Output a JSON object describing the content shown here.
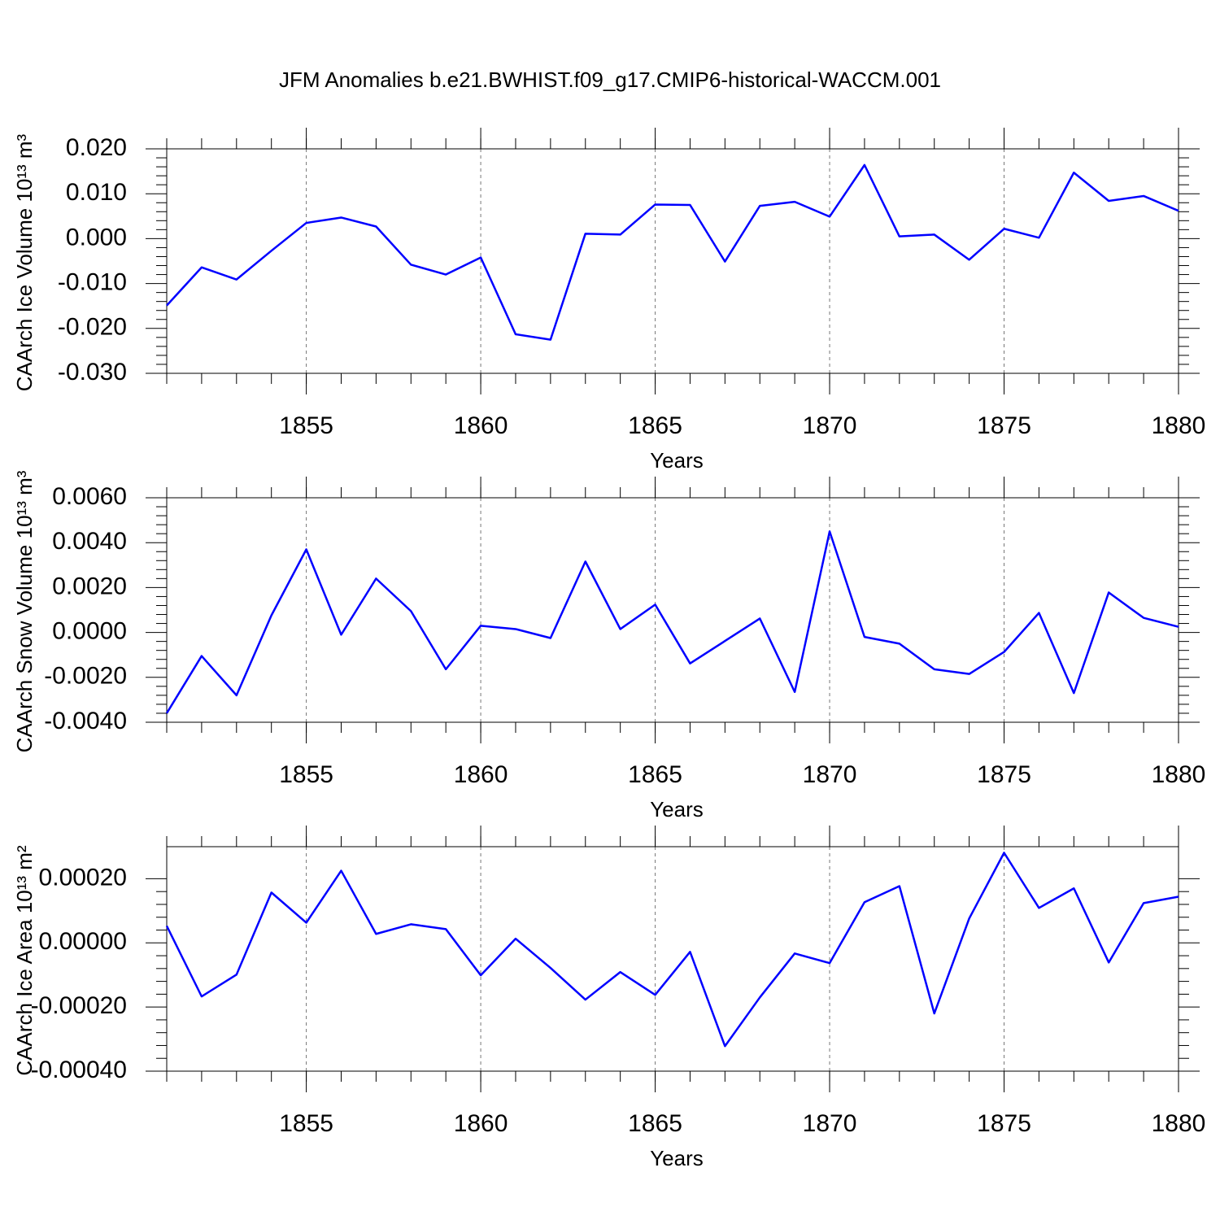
{
  "chart_data": [
    {
      "type": "line",
      "title": "JFM Anomalies b.e21.BWHIST.f09_g17.CMIP6-historical-WACCM.001",
      "ylabel": "CAArch Ice Volume 10¹³ m³",
      "xlabel": "Years",
      "x": [
        1851,
        1852,
        1853,
        1854,
        1855,
        1856,
        1857,
        1858,
        1859,
        1860,
        1861,
        1862,
        1863,
        1864,
        1865,
        1866,
        1867,
        1868,
        1869,
        1870,
        1871,
        1872,
        1873,
        1874,
        1875,
        1876,
        1877,
        1878,
        1879,
        1880
      ],
      "values": [
        -0.0149,
        -0.0064,
        -0.0091,
        -0.0027,
        0.0035,
        0.0047,
        0.0027,
        -0.0058,
        -0.008,
        -0.0042,
        -0.0213,
        -0.0225,
        0.0011,
        0.0009,
        0.0076,
        0.0075,
        -0.0051,
        0.0073,
        0.0082,
        0.0049,
        0.0164,
        0.0005,
        0.0009,
        -0.0047,
        0.0022,
        0.0002,
        0.0147,
        0.0084,
        0.0095,
        0.0062
      ],
      "color": "#0000ff",
      "xlim": [
        1851,
        1880
      ],
      "xticks": [
        1855,
        1860,
        1865,
        1870,
        1875,
        1880
      ],
      "ylim": [
        -0.03,
        0.02
      ],
      "yticks": [
        {
          "value": -0.03,
          "label": "-0.030"
        },
        {
          "value": -0.02,
          "label": "-0.020"
        },
        {
          "value": -0.01,
          "label": "-0.010"
        },
        {
          "value": 0,
          "label": "0.000"
        },
        {
          "value": 0.01,
          "label": "0.010"
        },
        {
          "value": 0.02,
          "label": "0.020"
        }
      ],
      "grid": "x"
    },
    {
      "type": "line",
      "ylabel": "CAArch Snow Volume 10¹³ m³",
      "xlabel": "Years",
      "x": [
        1851,
        1852,
        1853,
        1854,
        1855,
        1856,
        1857,
        1858,
        1859,
        1860,
        1861,
        1862,
        1863,
        1864,
        1865,
        1866,
        1867,
        1868,
        1869,
        1870,
        1871,
        1872,
        1873,
        1874,
        1875,
        1876,
        1877,
        1878,
        1879,
        1880
      ],
      "values": [
        -0.0036,
        -0.00105,
        -0.0028,
        0.00076,
        0.0037,
        -0.0001,
        0.0024,
        0.00095,
        -0.00164,
        0.0003,
        0.00015,
        -0.00025,
        0.00316,
        0.00015,
        0.00124,
        -0.00138,
        -0.00038,
        0.00062,
        -0.00265,
        0.0045,
        -0.0002,
        -0.0005,
        -0.00164,
        -0.00185,
        -0.00087,
        0.00087,
        -0.0027,
        0.00178,
        0.00065,
        0.00025
      ],
      "color": "#0000ff",
      "xlim": [
        1851,
        1880
      ],
      "xticks": [
        1855,
        1860,
        1865,
        1870,
        1875,
        1880
      ],
      "ylim": [
        -0.004,
        0.006
      ],
      "yticks": [
        {
          "value": -0.004,
          "label": "-0.0040"
        },
        {
          "value": -0.002,
          "label": "-0.0020"
        },
        {
          "value": 0,
          "label": "0.0000"
        },
        {
          "value": 0.002,
          "label": "0.0020"
        },
        {
          "value": 0.004,
          "label": "0.0040"
        },
        {
          "value": 0.006,
          "label": "0.0060"
        }
      ],
      "grid": "x"
    },
    {
      "type": "line",
      "ylabel": "CAArch Ice Area 10¹³ m²",
      "xlabel": "Years",
      "x": [
        1851,
        1852,
        1853,
        1854,
        1855,
        1856,
        1857,
        1858,
        1859,
        1860,
        1861,
        1862,
        1863,
        1864,
        1865,
        1866,
        1867,
        1868,
        1869,
        1870,
        1871,
        1872,
        1873,
        1874,
        1875,
        1876,
        1877,
        1878,
        1879,
        1880
      ],
      "values": [
        5.3e-05,
        -0.000167,
        -9.9e-05,
        0.000157,
        6.3e-05,
        0.000225,
        2.8e-05,
        5.8e-05,
        4.3e-05,
        -0.000101,
        1.3e-05,
        -7.8e-05,
        -0.000177,
        -9.1e-05,
        -0.000162,
        -2.8e-05,
        -0.000322,
        -0.00017,
        -3.3e-05,
        -6.3e-05,
        0.000127,
        0.000177,
        -0.00022,
        7.6e-05,
        0.000281,
        0.000109,
        0.00017,
        -6.1e-05,
        0.000124,
        0.000144
      ],
      "color": "#0000ff",
      "xlim": [
        1851,
        1880
      ],
      "xticks": [
        1855,
        1860,
        1865,
        1870,
        1875,
        1880
      ],
      "ylim": [
        -0.0004,
        0.0003
      ],
      "yticks": [
        {
          "value": -0.0004,
          "label": "-0.00040"
        },
        {
          "value": -0.0002,
          "label": "-0.00020"
        },
        {
          "value": 0,
          "label": "0.00000"
        },
        {
          "value": 0.0002,
          "label": "0.00020"
        }
      ],
      "grid": "x"
    }
  ]
}
